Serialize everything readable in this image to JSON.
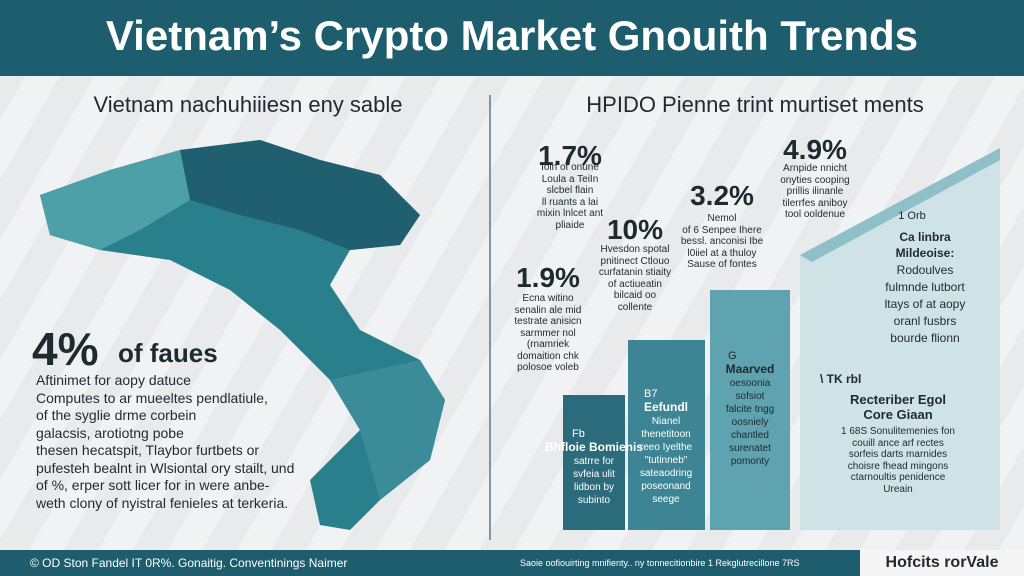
{
  "header": {
    "title": "Vietnam’s Crypto Market Gnouith Trends"
  },
  "left": {
    "heading": "Vietnam nachuhiiiesn eny sable",
    "highlight": "4%",
    "highlight_text": "of faues",
    "paragraph": [
      "Aftinimet for aopy datuce",
      "Computes to ar mueeltes pendlatiule,",
      "of the syglie drme corbein",
      "galacsis, arotiotng pobe",
      "thesen hecatspit, Tlaybor furtbets or",
      "pufesteh bealnt in Wlsiontal ory stailt, und",
      "of %, erper sott licer for in were anbe-",
      "weth clony of nyistral fenieles at terkeria."
    ]
  },
  "right": {
    "heading": "HPIDO Pienne trint murtiset ments",
    "stats": [
      {
        "value": "1.7%",
        "lines": [
          "Ioin of onune",
          "Loula a TeiIn",
          "slcbel flain",
          "ll ruants a lai",
          "mixin lnlcet ant",
          "pliaide"
        ]
      },
      {
        "value": "10%",
        "lines": [
          "Hvesdon spotal",
          "pnitinect Ctlouo",
          "curfatanin stiaity",
          "of actiueatin",
          "bilcaid oo",
          "collente"
        ]
      },
      {
        "value": "3.2%",
        "lines": [
          "Nemol",
          "of 6 Senpee Ihere",
          "bessl. anconisi Ibe",
          "l0iiel at a thuloy",
          "Sause of fontes"
        ]
      },
      {
        "value": "4.9%",
        "lines": [
          "Arnpide nnicht",
          "onyties cooping",
          "prillis ilinanle",
          "tilerrfes aniboy",
          "tool ooldenue"
        ]
      },
      {
        "value": "1.9%",
        "lines": [
          "Ecna witino",
          "senalin ale mid",
          "testrate anisicn",
          "sarmmer nol",
          "(rnamriek",
          "domaition chk",
          "polosoe voleb"
        ]
      }
    ],
    "steps": [
      {
        "tag": "Fb",
        "label": "Bhfloie Bomienis",
        "lines": [
          "satrre for",
          "svfeia ulit",
          "lidbon by",
          "subinto"
        ]
      },
      {
        "tag": "B7",
        "label": "Eefundl",
        "lines": [
          "Nianel",
          "thenetitoon",
          "reeo Iyelthe",
          "\"tutinneb\"",
          "sateaodring",
          "poseonand",
          "seege"
        ]
      },
      {
        "tag": "G",
        "label": "Maarved",
        "lines": [
          "oesoonia",
          "sofsiot",
          "falcite tngg",
          "oosniely",
          "chantled",
          "surenatet",
          "pomonty"
        ]
      },
      {
        "tag": "1 Orb",
        "label": "Ca linbra",
        "sublabel": "Mildeoise:",
        "lines": [
          "Rodoulves",
          "fulmnde lutbort",
          "ltays of at aopy",
          "oranl fusbrs",
          "bourde flionn"
        ]
      }
    ],
    "note": {
      "tag": "\\ TK rbl",
      "title": "Recteriber Egol",
      "subtitle": "Core Giaan",
      "lines": [
        "1 68S Sonulitemenies fon",
        "couill ance arf rectes",
        "sorfeis darts marnides",
        "choisre fhead mingons",
        "ctarnoultis penidence",
        "Ureain"
      ]
    }
  },
  "footer": {
    "left": "© OD Ston Fandel IT 0R%. Gonaitig. Conventinings Naimer",
    "middle": "Saoie oofiouirting mnifienty.. ny tonnecitionbire 1 Rekglutrecillone 7RS",
    "right": "Hofcits rorVale"
  }
}
